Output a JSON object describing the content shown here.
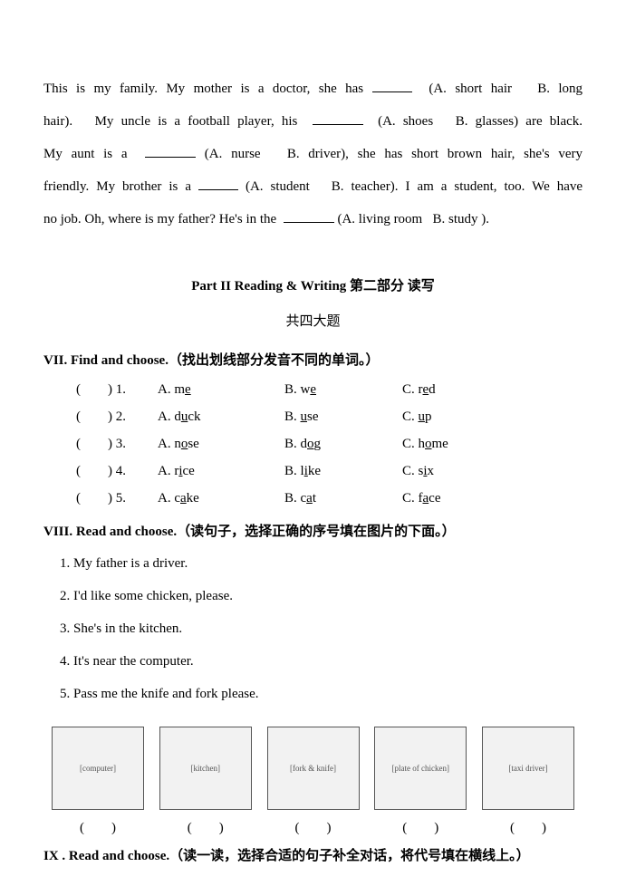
{
  "intro": {
    "line1_pre": "This is my family. My mother is a doctor, she has",
    "opt1a": "(A. short hair",
    "opt1b": "B. long",
    "line2a": "hair).",
    "line2b": "My uncle is a football player, his",
    "opt2": "(A. shoes",
    "opt2b": "B. glasses) are black.",
    "line3a": "My aunt is a",
    "opt3": "(A. nurse",
    "opt3b": "B. driver), she has short brown hair, she's very",
    "line4a": "friendly. My brother is a",
    "opt4": "(A. student",
    "opt4b": "B. teacher). I am a student, too. We have",
    "line5a": "no job. Oh, where is my father? He's in the",
    "opt5": "(A. living room",
    "opt5b": "B. study )."
  },
  "part2": {
    "title": "Part II   Reading & Writing  第二部分   读写",
    "sub": "共四大题"
  },
  "s7": {
    "head": "VII. Find and choose.（找出划线部分发音不同的单词。）",
    "rows": [
      {
        "n": "(　　) 1.",
        "a_pre": "A. m",
        "a_u": "e",
        "a_post": "",
        "b_pre": "B. w",
        "b_u": "e",
        "b_post": "",
        "c_pre": "C. r",
        "c_u": "e",
        "c_post": "d"
      },
      {
        "n": "(　　) 2.",
        "a_pre": "A. d",
        "a_u": "u",
        "a_post": "ck",
        "b_pre": "B. ",
        "b_u": "u",
        "b_post": "se",
        "c_pre": "C. ",
        "c_u": "u",
        "c_post": "p"
      },
      {
        "n": "(　　) 3.",
        "a_pre": "A. n",
        "a_u": "o",
        "a_post": "se",
        "b_pre": "B. d",
        "b_u": "o",
        "b_post": "g",
        "c_pre": "C. h",
        "c_u": "o",
        "c_post": "me"
      },
      {
        "n": "(　　) 4.",
        "a_pre": "A. r",
        "a_u": "i",
        "a_post": "ce",
        "b_pre": "B. l",
        "b_u": "i",
        "b_post": "ke",
        "c_pre": "C. s",
        "c_u": "i",
        "c_post": "x"
      },
      {
        "n": "(　　) 5.",
        "a_pre": "A. c",
        "a_u": "a",
        "a_post": "ke",
        "b_pre": "B. c",
        "b_u": "a",
        "b_post": "t",
        "c_pre": "C. f",
        "c_u": "a",
        "c_post": "ce"
      }
    ]
  },
  "s8": {
    "head": "VIII. Read and choose.（读句子，选择正确的序号填在图片的下面。）",
    "items": [
      "1. My father is a driver.",
      "2. I'd like some chicken, please.",
      "3. She's in the kitchen.",
      "4. It's near the computer.",
      "5. Pass me the knife and fork please."
    ],
    "imgs": [
      "computer",
      "kitchen",
      "fork & knife",
      "plate of chicken",
      "taxi driver"
    ],
    "paren": "(　　)"
  },
  "s9": {
    "head": "IX . Read and choose.（读一读，选择合适的句子补全对话，将代号填在横线上。）"
  }
}
